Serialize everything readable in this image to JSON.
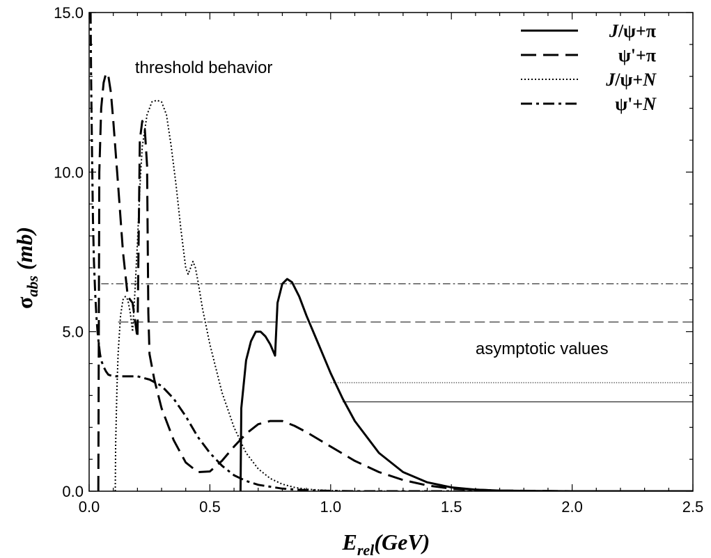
{
  "chart_data": {
    "type": "line",
    "xlabel": {
      "main": "E",
      "sub": "rel",
      "rest": "(GeV)"
    },
    "ylabel": {
      "main": "σ",
      "sub": "abs",
      "rest": " (mb)"
    },
    "xlim": [
      0,
      2.5
    ],
    "ylim": [
      0,
      15
    ],
    "xticks": [
      0,
      0.5,
      1.0,
      1.5,
      2.0,
      2.5
    ],
    "xtick_labels": [
      "0.0",
      "0.5",
      "1.0",
      "1.5",
      "2.0",
      "2.5"
    ],
    "yticks": [
      0,
      5,
      10,
      15
    ],
    "ytick_labels": [
      "0.0",
      "5.0",
      "10.0",
      "15.0"
    ],
    "grid": false,
    "legend_position": "top-right",
    "annotations": [
      {
        "text": "threshold behavior",
        "x": 0.19,
        "y": 13.1
      },
      {
        "text": "asymptotic values",
        "x": 1.6,
        "y": 4.3
      }
    ],
    "series": [
      {
        "name": "J/ψ+π",
        "legend": [
          {
            "t": "J",
            "i": true
          },
          {
            "t": "/ψ+π"
          }
        ],
        "dash": "",
        "width": 3,
        "asymptote": 2.8,
        "asymptote_from": 1.05,
        "x": [
          0.627,
          0.63,
          0.65,
          0.67,
          0.69,
          0.71,
          0.73,
          0.75,
          0.77,
          0.78,
          0.8,
          0.82,
          0.84,
          0.87,
          0.9,
          0.95,
          1.0,
          1.05,
          1.1,
          1.2,
          1.3,
          1.4,
          1.5,
          1.6,
          1.7,
          1.8,
          2.0,
          2.5
        ],
        "y": [
          0.0,
          2.6,
          4.1,
          4.7,
          5.0,
          5.0,
          4.85,
          4.6,
          4.25,
          5.9,
          6.5,
          6.65,
          6.55,
          6.1,
          5.5,
          4.6,
          3.7,
          2.9,
          2.2,
          1.2,
          0.6,
          0.28,
          0.12,
          0.05,
          0.02,
          0.01,
          0.0,
          0.0
        ]
      },
      {
        "name": "ψ'+π",
        "legend": [
          {
            "t": "ψ'+π"
          }
        ],
        "dash": "22,10",
        "width": 3,
        "asymptote": 5.3,
        "asymptote_from": 0.12,
        "x": [
          0.038,
          0.042,
          0.05,
          0.06,
          0.07,
          0.08,
          0.09,
          0.1,
          0.12,
          0.14,
          0.16,
          0.18,
          0.2,
          0.21,
          0.22,
          0.23,
          0.24,
          0.245,
          0.25,
          0.27,
          0.3,
          0.35,
          0.4,
          0.45,
          0.5,
          0.55,
          0.6,
          0.65,
          0.7,
          0.75,
          0.8,
          0.85,
          0.9,
          1.0,
          1.1,
          1.2,
          1.3,
          1.4,
          1.5,
          1.7,
          2.0,
          2.5
        ],
        "y": [
          0.0,
          10.0,
          12.0,
          12.8,
          13.1,
          13.0,
          12.5,
          11.6,
          9.6,
          7.5,
          6.1,
          5.9,
          4.8,
          11.0,
          11.6,
          11.4,
          10.2,
          5.6,
          4.3,
          3.5,
          2.6,
          1.6,
          0.9,
          0.6,
          0.62,
          0.95,
          1.4,
          1.8,
          2.1,
          2.2,
          2.2,
          2.05,
          1.85,
          1.4,
          0.95,
          0.6,
          0.35,
          0.18,
          0.08,
          0.02,
          0.0,
          0.0
        ]
      },
      {
        "name": "J/ψ+N",
        "legend": [
          {
            "t": "J",
            "i": true
          },
          {
            "t": "/ψ+"
          },
          {
            "t": "N",
            "i": true
          }
        ],
        "dash": "2,3",
        "width": 2,
        "asymptote": 3.4,
        "asymptote_from": 1.0,
        "x": [
          0.108,
          0.11,
          0.115,
          0.12,
          0.13,
          0.14,
          0.15,
          0.16,
          0.17,
          0.18,
          0.19,
          0.2,
          0.21,
          0.22,
          0.24,
          0.26,
          0.28,
          0.3,
          0.32,
          0.34,
          0.36,
          0.38,
          0.4,
          0.41,
          0.42,
          0.43,
          0.44,
          0.45,
          0.47,
          0.5,
          0.55,
          0.6,
          0.65,
          0.7,
          0.75,
          0.8,
          0.85,
          0.9,
          1.0,
          1.1,
          1.2,
          1.3,
          1.5,
          2.5
        ],
        "y": [
          0.0,
          1.5,
          3.2,
          4.3,
          5.5,
          6.0,
          6.1,
          6.0,
          5.6,
          5.0,
          6.3,
          7.8,
          9.5,
          10.8,
          11.8,
          12.2,
          12.25,
          12.2,
          11.8,
          10.8,
          9.6,
          8.2,
          7.0,
          6.8,
          7.0,
          7.2,
          7.0,
          6.6,
          5.7,
          4.6,
          3.1,
          2.0,
          1.2,
          0.7,
          0.4,
          0.22,
          0.12,
          0.06,
          0.02,
          0.0,
          0.0,
          0.0,
          0.0,
          0.0
        ]
      },
      {
        "name": "ψ'+N",
        "legend": [
          {
            "t": "ψ'+"
          },
          {
            "t": "N",
            "i": true
          }
        ],
        "dash": "16,6,4,6",
        "width": 3,
        "asymptote": 6.5,
        "asymptote_from": 0.05,
        "x": [
          0.006,
          0.008,
          0.012,
          0.016,
          0.02,
          0.025,
          0.03,
          0.035,
          0.04,
          0.045,
          0.05,
          0.06,
          0.07,
          0.08,
          0.1,
          0.12,
          0.15,
          0.2,
          0.25,
          0.3,
          0.35,
          0.4,
          0.45,
          0.5,
          0.55,
          0.6,
          0.65,
          0.7,
          0.8,
          0.9,
          1.0,
          1.1,
          1.2,
          1.4,
          2.5
        ],
        "y": [
          15.0,
          13.0,
          10.5,
          8.5,
          7.2,
          6.2,
          5.5,
          5.0,
          4.6,
          4.3,
          4.1,
          3.9,
          3.75,
          3.65,
          3.6,
          3.6,
          3.6,
          3.6,
          3.5,
          3.3,
          2.9,
          2.35,
          1.7,
          1.2,
          0.8,
          0.5,
          0.32,
          0.2,
          0.08,
          0.03,
          0.01,
          0.0,
          0.0,
          0.0,
          0.0
        ]
      }
    ]
  }
}
